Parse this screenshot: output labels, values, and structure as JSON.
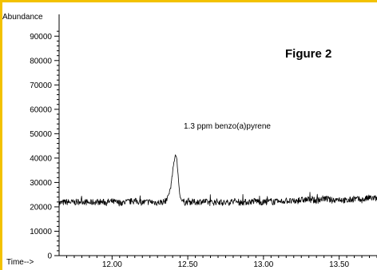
{
  "figure_label": "Figure 2",
  "accent_color": "#f3c200",
  "chart_data": {
    "type": "line",
    "title": "",
    "xlabel": "Time-->",
    "ylabel": "Abundance",
    "annotation": "1.3 ppm benzo(a)pyrene",
    "xlim": [
      11.65,
      13.75
    ],
    "ylim": [
      0,
      95000
    ],
    "x_ticks": [
      "12.00",
      "12.50",
      "13.00",
      "13.50"
    ],
    "x_tick_values": [
      12.0,
      12.5,
      13.0,
      13.5
    ],
    "y_ticks": [
      "0",
      "10000",
      "20000",
      "30000",
      "40000",
      "50000",
      "60000",
      "70000",
      "80000",
      "90000"
    ],
    "y_tick_values": [
      0,
      10000,
      20000,
      30000,
      40000,
      50000,
      60000,
      70000,
      80000,
      90000
    ],
    "grid": false,
    "series": [
      {
        "color": "#000000",
        "x": [
          11.65,
          11.7,
          11.75,
          11.8,
          11.85,
          11.9,
          11.95,
          12.0,
          12.05,
          12.1,
          12.15,
          12.2,
          12.25,
          12.3,
          12.35,
          12.37,
          12.39,
          12.4,
          12.41,
          12.42,
          12.43,
          12.44,
          12.45,
          12.46,
          12.48,
          12.5,
          12.55,
          12.6,
          12.65,
          12.7,
          12.75,
          12.8,
          12.85,
          12.9,
          12.95,
          13.0,
          13.05,
          13.1,
          13.15,
          13.2,
          13.25,
          13.3,
          13.35,
          13.4,
          13.45,
          13.5,
          13.55,
          13.6,
          13.65,
          13.7,
          13.75
        ],
        "y": [
          21500,
          22000,
          21800,
          22300,
          21700,
          22100,
          21900,
          22200,
          21600,
          22000,
          22400,
          21800,
          22100,
          21700,
          22200,
          24000,
          29000,
          34000,
          39000,
          42000,
          38000,
          30000,
          24000,
          22500,
          21800,
          22100,
          21900,
          22300,
          21600,
          22200,
          21500,
          22400,
          21800,
          22000,
          22500,
          21700,
          22300,
          21900,
          22600,
          22100,
          22800,
          23000,
          22500,
          23500,
          22700,
          23200,
          22400,
          23300,
          22800,
          23700,
          23400
        ]
      }
    ]
  }
}
